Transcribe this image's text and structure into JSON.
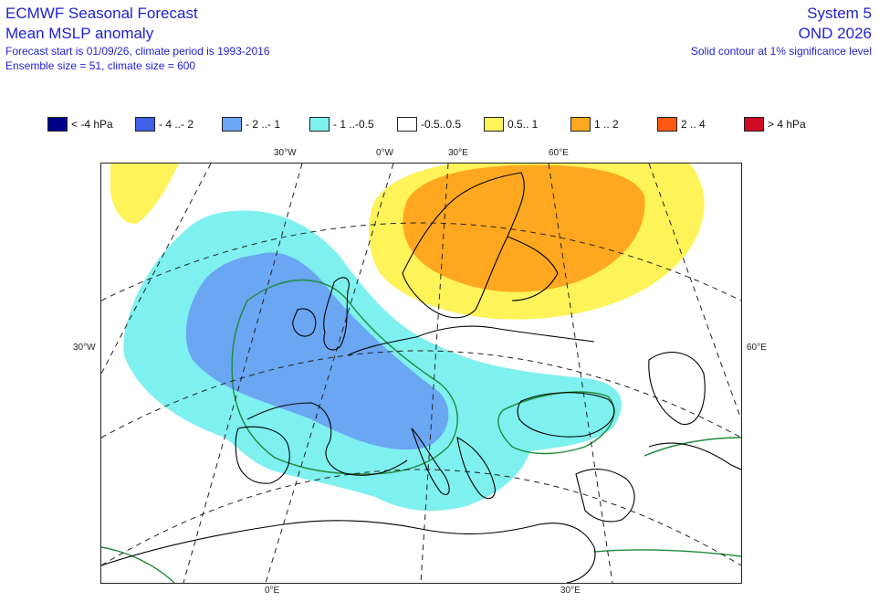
{
  "header": {
    "title": "ECMWF Seasonal Forecast",
    "subtitle": "Mean MSLP anomaly",
    "forecast_info": "Forecast start is 01/09/26, climate period is 1993-2016",
    "ensemble_info": "Ensemble size = 51, climate size = 600",
    "system": "System 5",
    "period": "OND 2026",
    "significance_note": "Solid contour at 1% significance level"
  },
  "legend": [
    {
      "label": "< -4 hPa",
      "color": "#00008b"
    },
    {
      "label": "- 4 ..- 2",
      "color": "#3f5fe6"
    },
    {
      "label": "- 2 ..- 1",
      "color": "#6aa6f2"
    },
    {
      "label": "- 1 ..-0.5",
      "color": "#7ff0f0"
    },
    {
      "label": "-0.5..0.5",
      "color": "#ffffff"
    },
    {
      "label": "0.5.. 1",
      "color": "#fff35a"
    },
    {
      "label": "1 .. 2",
      "color": "#ffa81f"
    },
    {
      "label": "2 .. 4",
      "color": "#ff5a14"
    },
    {
      "label": "> 4 hPa",
      "color": "#d10a23"
    }
  ],
  "grid_labels": {
    "top": [
      "30°W",
      "0°W",
      "30°E",
      "60°E"
    ],
    "left": [
      "30°W"
    ],
    "right": [
      "60°E"
    ],
    "bottom": [
      "0°E",
      "30°E"
    ]
  },
  "colors": {
    "title_text": "#1f1fd6",
    "coastline": "#000000",
    "significance_contour": "#1e8a3a",
    "gridline": "#222222"
  }
}
